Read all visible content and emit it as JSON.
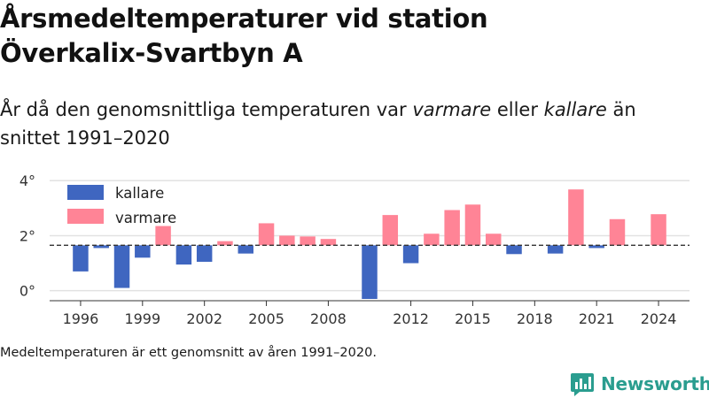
{
  "header": {
    "title_line1": "Årsmedeltemperaturer vid station",
    "title_line2": "Överkalix-Svartbyn A",
    "subtitle_pre": "År då den genomsnittliga temperaturen var ",
    "subtitle_warm": "varmare",
    "subtitle_mid": " eller ",
    "subtitle_cold": "kallare",
    "subtitle_post": " än snittet 1991–2020"
  },
  "footnote": "Medeltemperaturen är ett genomsnitt av åren 1991–2020.",
  "brand": {
    "name": "Newsworthy",
    "color": "#2a9d8f",
    "icon": "bar-chart-logo-icon"
  },
  "chart_data": {
    "type": "bar",
    "baseline": 1.65,
    "ylim": [
      -0.3,
      4.2
    ],
    "yticks": [
      0,
      2,
      4
    ],
    "ytick_labels": [
      "0°",
      "2°",
      "4°"
    ],
    "xlim": [
      1994.5,
      2025.5
    ],
    "xticks": [
      1996,
      1999,
      2002,
      2005,
      2008,
      2012,
      2015,
      2018,
      2021,
      2024
    ],
    "colors": {
      "kallare": "#3f66c0",
      "varmare": "#ff8496"
    },
    "legend": {
      "position": "top-left",
      "entries": [
        {
          "key": "kallare",
          "label": "kallare"
        },
        {
          "key": "varmare",
          "label": "varmare"
        }
      ]
    },
    "grid": true,
    "values": [
      {
        "year": 1996,
        "value": 0.7
      },
      {
        "year": 1997,
        "value": 1.55
      },
      {
        "year": 1998,
        "value": 0.1
      },
      {
        "year": 1999,
        "value": 1.2
      },
      {
        "year": 2000,
        "value": 2.35
      },
      {
        "year": 2001,
        "value": 0.95
      },
      {
        "year": 2002,
        "value": 1.05
      },
      {
        "year": 2003,
        "value": 1.8
      },
      {
        "year": 2004,
        "value": 1.35
      },
      {
        "year": 2005,
        "value": 2.45
      },
      {
        "year": 2006,
        "value": 2.0
      },
      {
        "year": 2007,
        "value": 1.97
      },
      {
        "year": 2008,
        "value": 1.88
      },
      {
        "year": 2010,
        "value": -0.3
      },
      {
        "year": 2011,
        "value": 2.75
      },
      {
        "year": 2012,
        "value": 1.0
      },
      {
        "year": 2013,
        "value": 2.07
      },
      {
        "year": 2014,
        "value": 2.93
      },
      {
        "year": 2015,
        "value": 3.13
      },
      {
        "year": 2016,
        "value": 2.07
      },
      {
        "year": 2017,
        "value": 1.33
      },
      {
        "year": 2019,
        "value": 1.35
      },
      {
        "year": 2020,
        "value": 3.68
      },
      {
        "year": 2021,
        "value": 1.55
      },
      {
        "year": 2022,
        "value": 2.6
      },
      {
        "year": 2024,
        "value": 2.78
      }
    ]
  }
}
